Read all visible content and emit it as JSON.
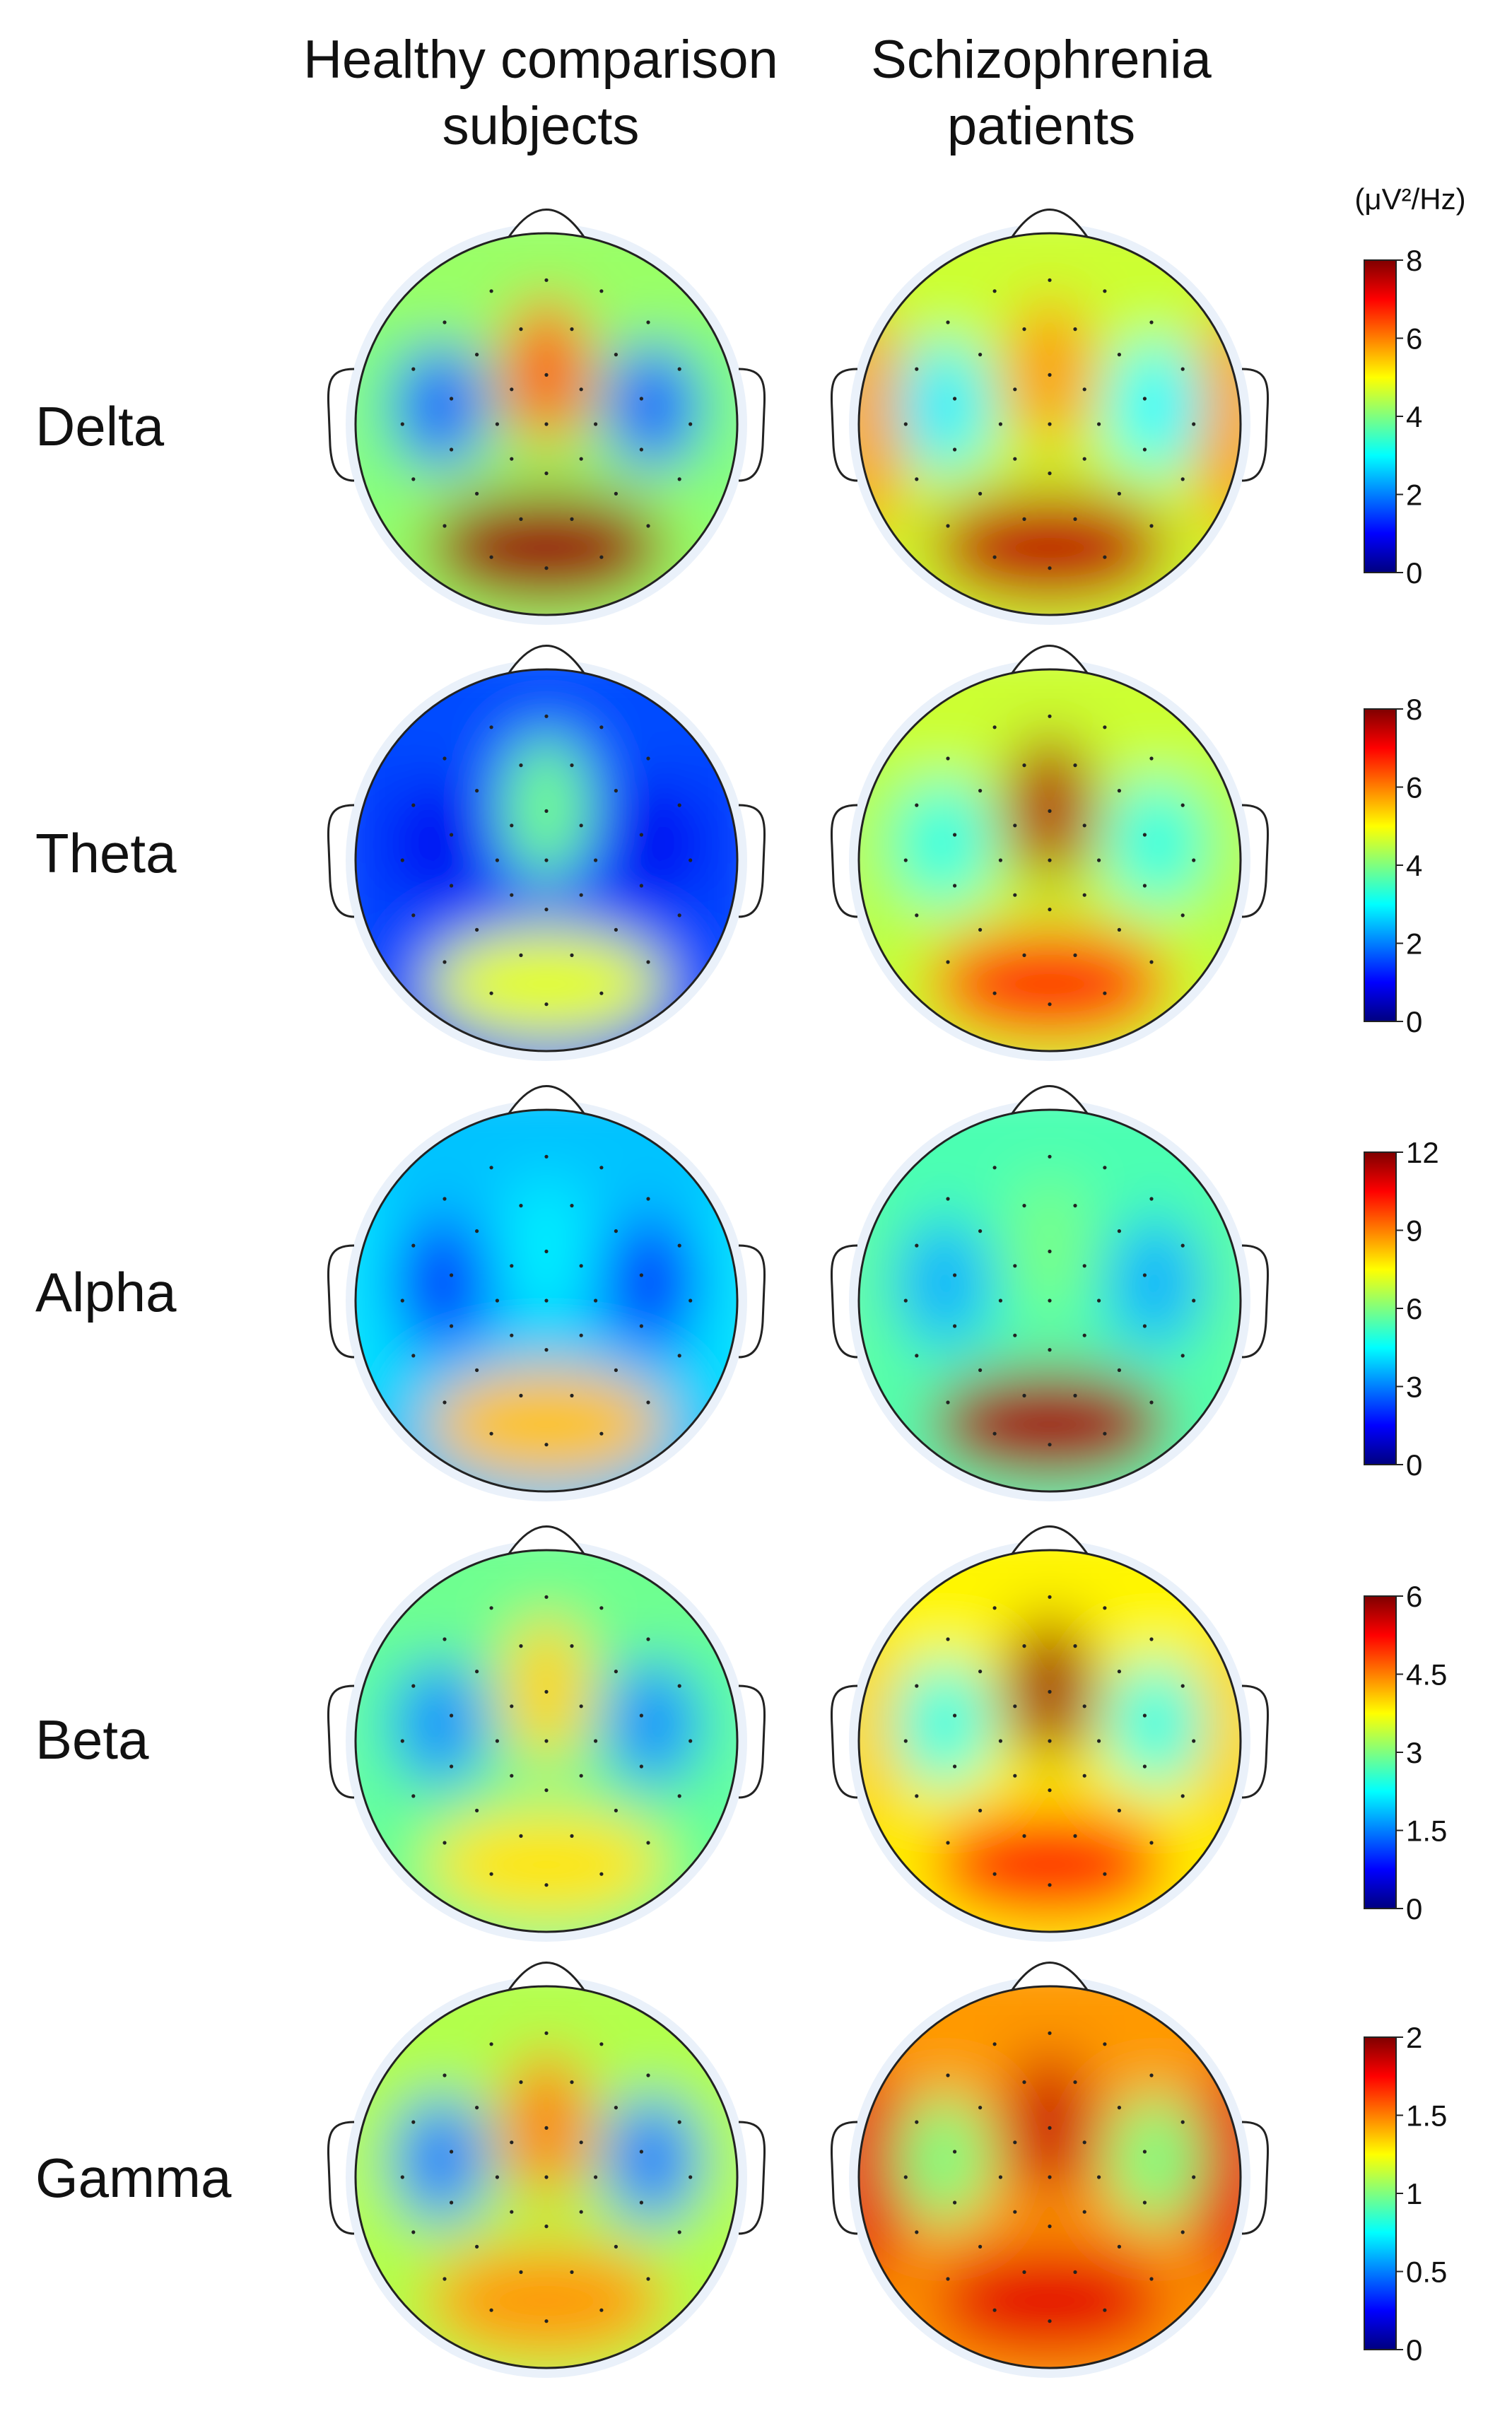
{
  "columns": [
    {
      "title_line1": "Healthy comparison",
      "title_line2": "subjects"
    },
    {
      "title_line1": "Schizophrenia",
      "title_line2": "patients"
    }
  ],
  "units": "(μV²/Hz)",
  "colormap": [
    "#00007f",
    "#0000ff",
    "#007fff",
    "#00ffff",
    "#7fff7f",
    "#ffff00",
    "#ff7f00",
    "#ff0000",
    "#7f0000"
  ],
  "chart_data": {
    "type": "heatmap",
    "units": "(μV²/Hz)",
    "groups": [
      "Healthy comparison subjects",
      "Schizophrenia patients"
    ],
    "bands": [
      {
        "name": "Delta",
        "colorbar_range": [
          0,
          8
        ],
        "colorbar_ticks": [
          "8",
          "6",
          "4",
          "2",
          "0"
        ],
        "healthy": {
          "background": 4.2,
          "frontal_midline": 6.3,
          "lateral_left": 1.8,
          "lateral_right": 1.8,
          "posterior": 7.8,
          "temporal_edges": 4.0
        },
        "patients": {
          "background": 4.6,
          "frontal_midline": 5.8,
          "lateral_left": 2.9,
          "lateral_right": 3.0,
          "posterior": 7.5,
          "temporal_edges": 5.8
        }
      },
      {
        "name": "Theta",
        "colorbar_range": [
          0,
          8
        ],
        "colorbar_ticks": [
          "8",
          "6",
          "4",
          "2",
          "0"
        ],
        "healthy": {
          "background": 1.6,
          "frontal_midline": 3.9,
          "lateral_left": 0.9,
          "lateral_right": 0.9,
          "posterior": 4.8,
          "temporal_edges": 1.5
        },
        "patients": {
          "background": 4.6,
          "frontal_midline": 7.6,
          "lateral_left": 3.2,
          "lateral_right": 3.2,
          "posterior": 6.6,
          "temporal_edges": 4.4
        }
      },
      {
        "name": "Alpha",
        "colorbar_range": [
          0,
          12
        ],
        "colorbar_ticks": [
          "12",
          "9",
          "6",
          "3",
          "0"
        ],
        "healthy": {
          "background": 3.8,
          "frontal_midline": 4.3,
          "lateral_left": 2.2,
          "lateral_right": 2.2,
          "posterior": 8.2,
          "temporal_edges": 4.2
        },
        "patients": {
          "background": 5.4,
          "frontal_midline": 5.9,
          "lateral_left": 3.6,
          "lateral_right": 3.6,
          "posterior": 11.6,
          "temporal_edges": 5.6
        }
      },
      {
        "name": "Beta",
        "colorbar_range": [
          0,
          6
        ],
        "colorbar_ticks": [
          "6",
          "4.5",
          "3",
          "1.5",
          "0"
        ],
        "healthy": {
          "background": 2.9,
          "frontal_midline": 4.0,
          "lateral_left": 1.6,
          "lateral_right": 1.6,
          "posterior": 3.9,
          "temporal_edges": 2.8
        },
        "patients": {
          "background": 3.8,
          "frontal_midline": 5.8,
          "lateral_left": 2.4,
          "lateral_right": 2.4,
          "posterior": 5.0,
          "temporal_edges": 4.0
        }
      },
      {
        "name": "Gamma",
        "colorbar_range": [
          0,
          2
        ],
        "colorbar_ticks": [
          "2",
          "1.5",
          "1",
          "0.5",
          "0"
        ],
        "healthy": {
          "background": 1.1,
          "frontal_midline": 1.5,
          "lateral_left": 0.5,
          "lateral_right": 0.5,
          "posterior": 1.45,
          "temporal_edges": 1.1
        },
        "patients": {
          "background": 1.45,
          "frontal_midline": 1.85,
          "lateral_left": 1.0,
          "lateral_right": 1.0,
          "posterior": 1.8,
          "temporal_edges": 1.8
        }
      }
    ]
  }
}
